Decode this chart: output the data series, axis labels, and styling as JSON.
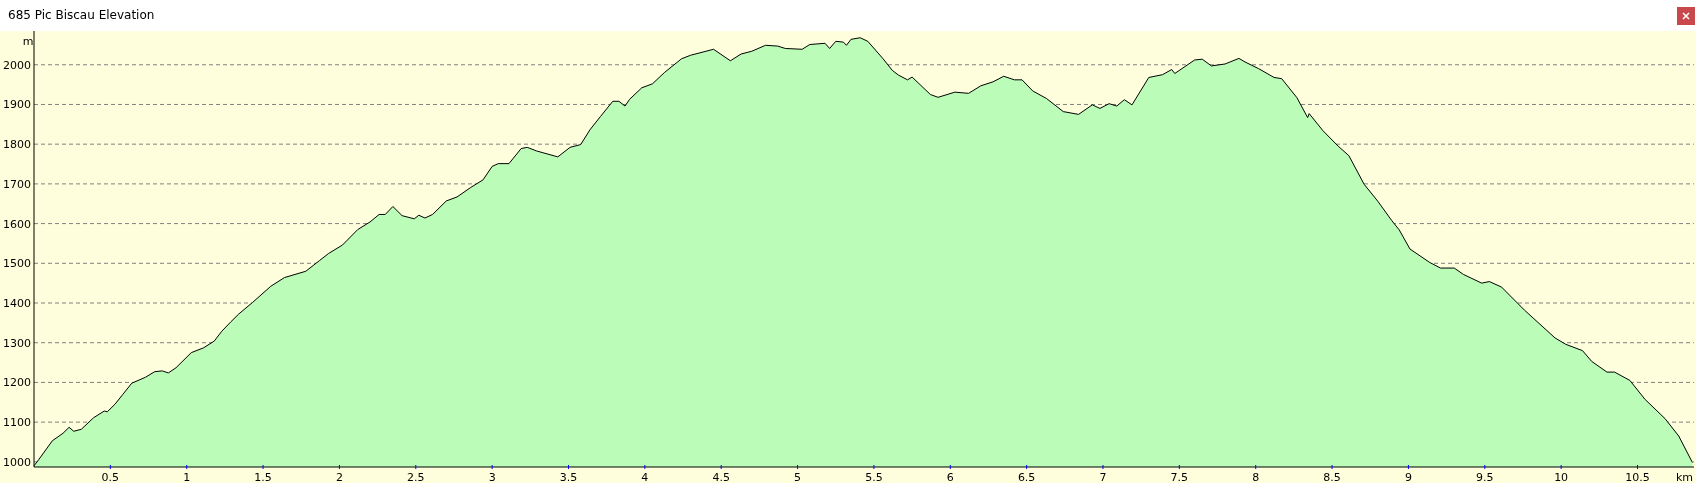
{
  "chart_data": {
    "type": "area",
    "title": "685 Pic Biscau Elevation",
    "xlabel": "km",
    "ylabel": "m",
    "x": [
      0,
      0.03,
      0.12,
      0.19,
      0.23,
      0.26,
      0.31,
      0.39,
      0.46,
      0.48,
      0.53,
      0.58,
      0.64,
      0.73,
      0.79,
      0.84,
      0.88,
      0.93,
      1.03,
      1.11,
      1.18,
      1.23,
      1.29,
      1.34,
      1.43,
      1.55,
      1.64,
      1.78,
      1.87,
      1.93,
      2.02,
      2.12,
      2.2,
      2.26,
      2.3,
      2.35,
      2.41,
      2.49,
      2.52,
      2.56,
      2.61,
      2.7,
      2.77,
      2.86,
      2.94,
      3.0,
      3.04,
      3.11,
      3.19,
      3.23,
      3.29,
      3.43,
      3.51,
      3.58,
      3.64,
      3.71,
      3.79,
      3.83,
      3.87,
      3.9,
      3.98,
      4.05,
      4.13,
      4.24,
      4.3,
      4.4,
      4.45,
      4.56,
      4.63,
      4.7,
      4.79,
      4.87,
      4.92,
      5.03,
      5.08,
      5.18,
      5.21,
      5.25,
      5.3,
      5.32,
      5.35,
      5.41,
      5.46,
      5.56,
      5.62,
      5.66,
      5.72,
      5.75,
      5.87,
      5.92,
      6.03,
      6.12,
      6.2,
      6.28,
      6.35,
      6.42,
      6.47,
      6.54,
      6.63,
      6.74,
      6.84,
      6.93,
      6.98,
      7.04,
      7.09,
      7.14,
      7.19,
      7.3,
      7.39,
      7.45,
      7.47,
      7.6,
      7.65,
      7.71,
      7.8,
      7.89,
      7.93,
      8.02,
      8.12,
      8.17,
      8.27,
      8.34,
      8.35,
      8.44,
      8.54,
      8.61,
      8.71,
      8.8,
      8.89,
      8.94,
      9.01,
      9.14,
      9.21,
      9.3,
      9.36,
      9.48,
      9.53,
      9.61,
      9.76,
      9.96,
      10.03,
      10.14,
      10.2,
      10.3,
      10.35,
      10.45,
      10.55,
      10.68,
      10.77,
      10.86
    ],
    "series": [
      {
        "color": "#bbfdb8",
        "values": [
          990,
          1005,
          1053,
          1072,
          1087,
          1077,
          1082,
          1111,
          1128,
          1126,
          1145,
          1169,
          1198,
          1213,
          1227,
          1229,
          1224,
          1237,
          1275,
          1287,
          1304,
          1329,
          1353,
          1372,
          1401,
          1442,
          1464,
          1480,
          1507,
          1525,
          1546,
          1585,
          1604,
          1623,
          1623,
          1643,
          1620,
          1612,
          1621,
          1614,
          1623,
          1657,
          1667,
          1691,
          1710,
          1744,
          1751,
          1751,
          1789,
          1792,
          1783,
          1768,
          1792,
          1799,
          1836,
          1870,
          1908,
          1908,
          1896,
          1913,
          1942,
          1952,
          1981,
          2015,
          2024,
          2034,
          2039,
          2010,
          2027,
          2034,
          2049,
          2047,
          2041,
          2039,
          2051,
          2054,
          2041,
          2059,
          2057,
          2049,
          2064,
          2068,
          2059,
          2015,
          1986,
          1974,
          1962,
          1969,
          1925,
          1918,
          1931,
          1928,
          1947,
          1957,
          1971,
          1962,
          1962,
          1934,
          1915,
          1882,
          1875,
          1899,
          1890,
          1902,
          1896,
          1912,
          1899,
          1968,
          1975,
          1988,
          1978,
          2012,
          2014,
          1997,
          2002,
          2016,
          2007,
          1990,
          1968,
          1965,
          1917,
          1867,
          1877,
          1834,
          1795,
          1771,
          1699,
          1656,
          1608,
          1584,
          1536,
          1502,
          1488,
          1488,
          1472,
          1450,
          1454,
          1440,
          1382,
          1312,
          1296,
          1280,
          1253,
          1226,
          1226,
          1205,
          1157,
          1109,
          1065,
          998
        ]
      }
    ],
    "xlim": [
      0,
      10.87
    ],
    "ylim": [
      987,
      2085
    ],
    "xticks": [
      0.5,
      1,
      1.5,
      2,
      2.5,
      3,
      3.5,
      4,
      4.5,
      5,
      5.5,
      6,
      6.5,
      7,
      7.5,
      8,
      8.5,
      9,
      9.5,
      10,
      10.5
    ],
    "yticks": [
      1000,
      1100,
      1200,
      1300,
      1400,
      1500,
      1600,
      1700,
      1800,
      1900,
      2000
    ],
    "grid": "y"
  }
}
